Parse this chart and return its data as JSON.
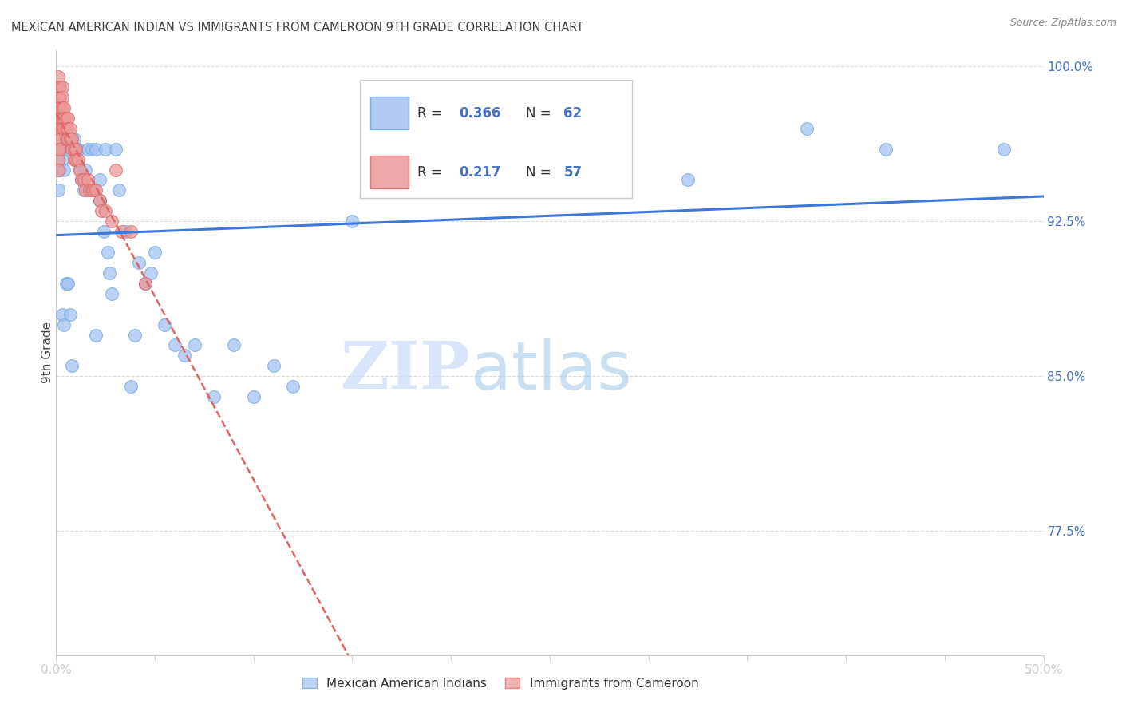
{
  "title": "MEXICAN AMERICAN INDIAN VS IMMIGRANTS FROM CAMEROON 9TH GRADE CORRELATION CHART",
  "source": "Source: ZipAtlas.com",
  "ylabel": "9th Grade",
  "xlim": [
    0.0,
    0.5
  ],
  "ylim": [
    0.715,
    1.008
  ],
  "xticks": [
    0.0,
    0.05,
    0.1,
    0.15,
    0.2,
    0.25,
    0.3,
    0.35,
    0.4,
    0.45,
    0.5
  ],
  "yticks": [
    0.775,
    0.85,
    0.925,
    1.0
  ],
  "ytick_labels": [
    "77.5%",
    "85.0%",
    "92.5%",
    "100.0%"
  ],
  "blue_R": 0.366,
  "blue_N": 62,
  "pink_R": 0.217,
  "pink_N": 57,
  "blue_color": "#a4c2f4",
  "pink_color": "#ea9999",
  "blue_line_color": "#3c78d8",
  "pink_line_color": "#e06666",
  "legend_label_blue": "Mexican American Indians",
  "legend_label_pink": "Immigrants from Cameroon",
  "blue_x": [
    0.001,
    0.001,
    0.002,
    0.002,
    0.003,
    0.003,
    0.004,
    0.005,
    0.006,
    0.007,
    0.008,
    0.009,
    0.01,
    0.01,
    0.011,
    0.012,
    0.013,
    0.014,
    0.015,
    0.016,
    0.018,
    0.02,
    0.022,
    0.022,
    0.024,
    0.025,
    0.026,
    0.027,
    0.028,
    0.03,
    0.032,
    0.035,
    0.038,
    0.04,
    0.042,
    0.045,
    0.048,
    0.05,
    0.055,
    0.06,
    0.065,
    0.07,
    0.08,
    0.09,
    0.1,
    0.11,
    0.12,
    0.15,
    0.18,
    0.22,
    0.26,
    0.32,
    0.38,
    0.42,
    0.48,
    0.003,
    0.004,
    0.005,
    0.006,
    0.007,
    0.008,
    0.02
  ],
  "blue_y": [
    0.955,
    0.94,
    0.96,
    0.95,
    0.96,
    0.955,
    0.95,
    0.96,
    0.965,
    0.965,
    0.965,
    0.965,
    0.96,
    0.955,
    0.96,
    0.95,
    0.945,
    0.94,
    0.95,
    0.96,
    0.96,
    0.96,
    0.945,
    0.935,
    0.92,
    0.96,
    0.91,
    0.9,
    0.89,
    0.96,
    0.94,
    0.92,
    0.845,
    0.87,
    0.905,
    0.895,
    0.9,
    0.91,
    0.875,
    0.865,
    0.86,
    0.865,
    0.84,
    0.865,
    0.84,
    0.855,
    0.845,
    0.925,
    0.94,
    0.945,
    0.94,
    0.945,
    0.97,
    0.96,
    0.96,
    0.88,
    0.875,
    0.895,
    0.895,
    0.88,
    0.855,
    0.87
  ],
  "pink_x": [
    0.001,
    0.001,
    0.001,
    0.001,
    0.001,
    0.001,
    0.001,
    0.001,
    0.001,
    0.001,
    0.002,
    0.002,
    0.002,
    0.002,
    0.002,
    0.002,
    0.002,
    0.003,
    0.003,
    0.003,
    0.003,
    0.003,
    0.004,
    0.004,
    0.004,
    0.005,
    0.005,
    0.005,
    0.006,
    0.006,
    0.006,
    0.007,
    0.007,
    0.008,
    0.008,
    0.009,
    0.009,
    0.01,
    0.01,
    0.011,
    0.012,
    0.013,
    0.014,
    0.015,
    0.016,
    0.017,
    0.018,
    0.019,
    0.02,
    0.022,
    0.023,
    0.025,
    0.028,
    0.03,
    0.033,
    0.038,
    0.045
  ],
  "pink_y": [
    0.995,
    0.99,
    0.985,
    0.98,
    0.975,
    0.97,
    0.965,
    0.96,
    0.955,
    0.95,
    0.99,
    0.985,
    0.98,
    0.975,
    0.97,
    0.965,
    0.96,
    0.99,
    0.985,
    0.98,
    0.975,
    0.97,
    0.98,
    0.975,
    0.97,
    0.975,
    0.97,
    0.965,
    0.975,
    0.97,
    0.965,
    0.97,
    0.965,
    0.965,
    0.96,
    0.96,
    0.955,
    0.96,
    0.955,
    0.955,
    0.95,
    0.945,
    0.945,
    0.94,
    0.945,
    0.94,
    0.94,
    0.94,
    0.94,
    0.935,
    0.93,
    0.93,
    0.925,
    0.95,
    0.92,
    0.92,
    0.895
  ],
  "watermark_zip": "ZIP",
  "watermark_atlas": "atlas",
  "background_color": "#ffffff",
  "grid_color": "#dddddd",
  "title_color": "#434343",
  "tick_color": "#4472c4",
  "ylabel_color": "#434343"
}
